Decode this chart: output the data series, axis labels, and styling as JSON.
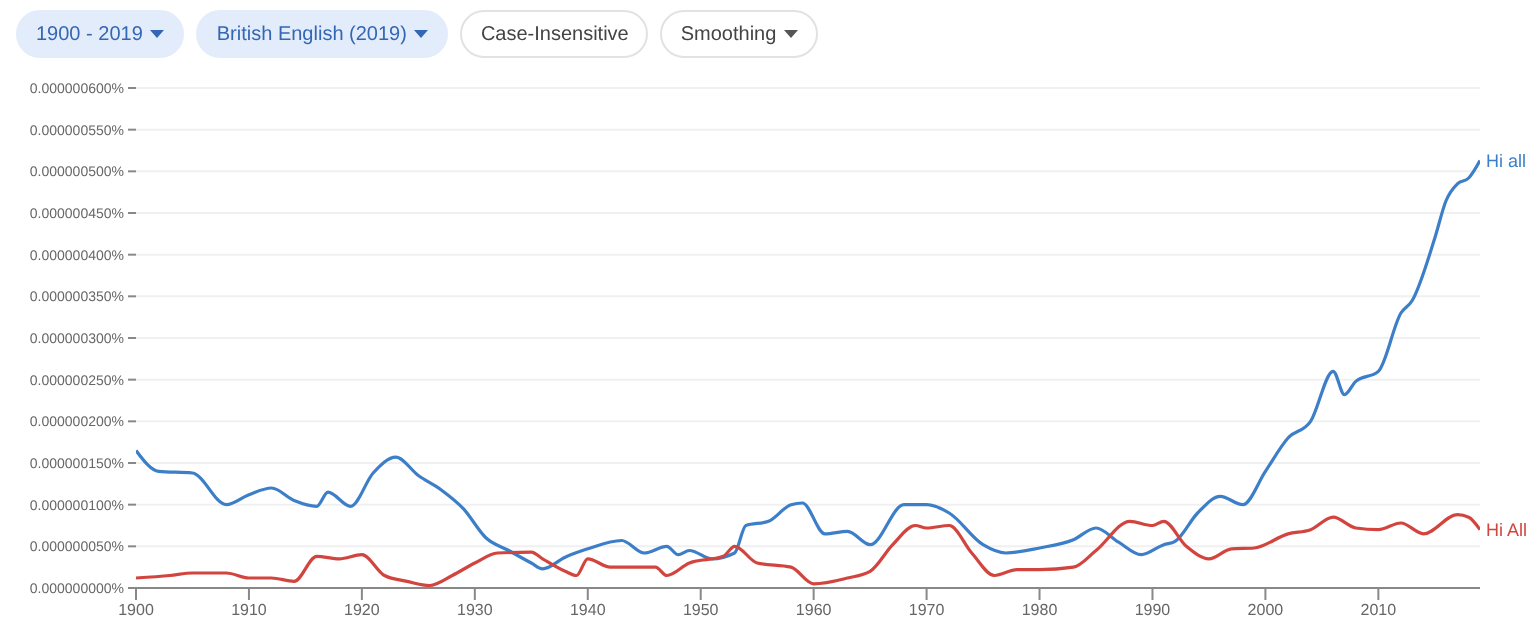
{
  "chart_data": {
    "type": "line",
    "annotations": [
      "1900 - 2019",
      "British English (2019)",
      "Case-Insensitive",
      "Smoothing"
    ],
    "xlim": [
      1900,
      2019
    ],
    "xticks": [
      1900,
      1910,
      1920,
      1930,
      1940,
      1950,
      1960,
      1970,
      1980,
      1990,
      2000,
      2010
    ],
    "ylim": [
      0,
      6e-07
    ],
    "yticks": [
      {
        "value": 0,
        "label": "0.000000000%"
      },
      {
        "value": 5e-08,
        "label": "0.000000050%"
      },
      {
        "value": 1e-07,
        "label": "0.000000100%"
      },
      {
        "value": 1.5e-07,
        "label": "0.000000150%"
      },
      {
        "value": 2e-07,
        "label": "0.000000200%"
      },
      {
        "value": 2.5e-07,
        "label": "0.000000250%"
      },
      {
        "value": 3e-07,
        "label": "0.000000300%"
      },
      {
        "value": 3.5e-07,
        "label": "0.000000350%"
      },
      {
        "value": 4e-07,
        "label": "0.000000400%"
      },
      {
        "value": 4.5e-07,
        "label": "0.000000450%"
      },
      {
        "value": 5e-07,
        "label": "0.000000500%"
      },
      {
        "value": 5.5e-07,
        "label": "0.000000550%"
      },
      {
        "value": 6e-07,
        "label": "0.000000600%"
      }
    ],
    "grid": "y",
    "marker": "none",
    "line_style": "solid",
    "series": [
      {
        "name": "Hi all",
        "color": "#3c7fc8",
        "x": [
          1900,
          1902,
          1905,
          1908,
          1910,
          1912,
          1914,
          1916,
          1917,
          1919,
          1921,
          1923,
          1925,
          1927,
          1929,
          1931,
          1933,
          1935,
          1936,
          1938,
          1940,
          1943,
          1945,
          1947,
          1948,
          1949,
          1951,
          1953,
          1954,
          1956,
          1958,
          1959,
          1961,
          1963,
          1965,
          1968,
          1970,
          1972,
          1975,
          1977,
          1980,
          1983,
          1985,
          1987,
          1989,
          1991,
          1992,
          1994,
          1996,
          1998,
          2000,
          2002,
          2004,
          2006,
          2007,
          2008,
          2010,
          2012,
          2013,
          2015,
          2016,
          2017,
          2018,
          2019
        ],
        "values": [
          1.65e-07,
          1.4e-07,
          1.38e-07,
          1e-07,
          1.12e-07,
          1.2e-07,
          1.05e-07,
          9.8e-08,
          1.15e-07,
          9.8e-08,
          1.38e-07,
          1.57e-07,
          1.35e-07,
          1.18e-07,
          9.5e-08,
          6e-08,
          4.5e-08,
          3e-08,
          2.3e-08,
          3.7e-08,
          4.7e-08,
          5.7e-08,
          4.2e-08,
          5e-08,
          4e-08,
          4.5e-08,
          3.5e-08,
          4.2e-08,
          7.5e-08,
          8e-08,
          1e-07,
          1.02e-07,
          6.5e-08,
          6.8e-08,
          5.2e-08,
          1e-07,
          1e-07,
          9e-08,
          5.2e-08,
          4.2e-08,
          4.8e-08,
          5.8e-08,
          7.2e-08,
          5.5e-08,
          4e-08,
          5.2e-08,
          5.6e-08,
          9e-08,
          1.1e-07,
          1e-07,
          1.4e-07,
          1.8e-07,
          2e-07,
          2.6e-07,
          2.32e-07,
          2.48e-07,
          2.6e-07,
          3.3e-07,
          3.45e-07,
          4.2e-07,
          4.65e-07,
          4.85e-07,
          4.92e-07,
          5.13e-07
        ]
      },
      {
        "name": "Hi All",
        "color": "#d2453f",
        "x": [
          1900,
          1903,
          1905,
          1908,
          1910,
          1912,
          1914,
          1916,
          1918,
          1920,
          1922,
          1924,
          1926,
          1928,
          1930,
          1932,
          1935,
          1936,
          1938,
          1939,
          1940,
          1942,
          1946,
          1947,
          1949,
          1952,
          1953,
          1955,
          1958,
          1960,
          1963,
          1965,
          1967,
          1969,
          1970,
          1972,
          1974,
          1976,
          1978,
          1980,
          1983,
          1985,
          1988,
          1990,
          1991,
          1993,
          1995,
          1997,
          1999,
          2002,
          2004,
          2006,
          2008,
          2010,
          2012,
          2014,
          2017,
          2018,
          2019
        ],
        "values": [
          1.2e-08,
          1.5e-08,
          1.8e-08,
          1.8e-08,
          1.2e-08,
          1.2e-08,
          8e-09,
          3.8e-08,
          3.5e-08,
          4e-08,
          1.5e-08,
          8e-09,
          3e-09,
          1.5e-08,
          3e-08,
          4.2e-08,
          4.3e-08,
          3.5e-08,
          2e-08,
          1.5e-08,
          3.5e-08,
          2.5e-08,
          2.5e-08,
          1.5e-08,
          3e-08,
          3.8e-08,
          5e-08,
          3e-08,
          2.5e-08,
          5e-09,
          1.2e-08,
          2e-08,
          5.2e-08,
          7.5e-08,
          7.2e-08,
          7.5e-08,
          4.2e-08,
          1.5e-08,
          2.2e-08,
          2.2e-08,
          2.5e-08,
          4.5e-08,
          8e-08,
          7.5e-08,
          8e-08,
          5e-08,
          3.5e-08,
          4.7e-08,
          4.8e-08,
          6.5e-08,
          7e-08,
          8.5e-08,
          7.2e-08,
          7e-08,
          7.8e-08,
          6.5e-08,
          8.8e-08,
          8.5e-08,
          7e-08
        ]
      }
    ]
  }
}
